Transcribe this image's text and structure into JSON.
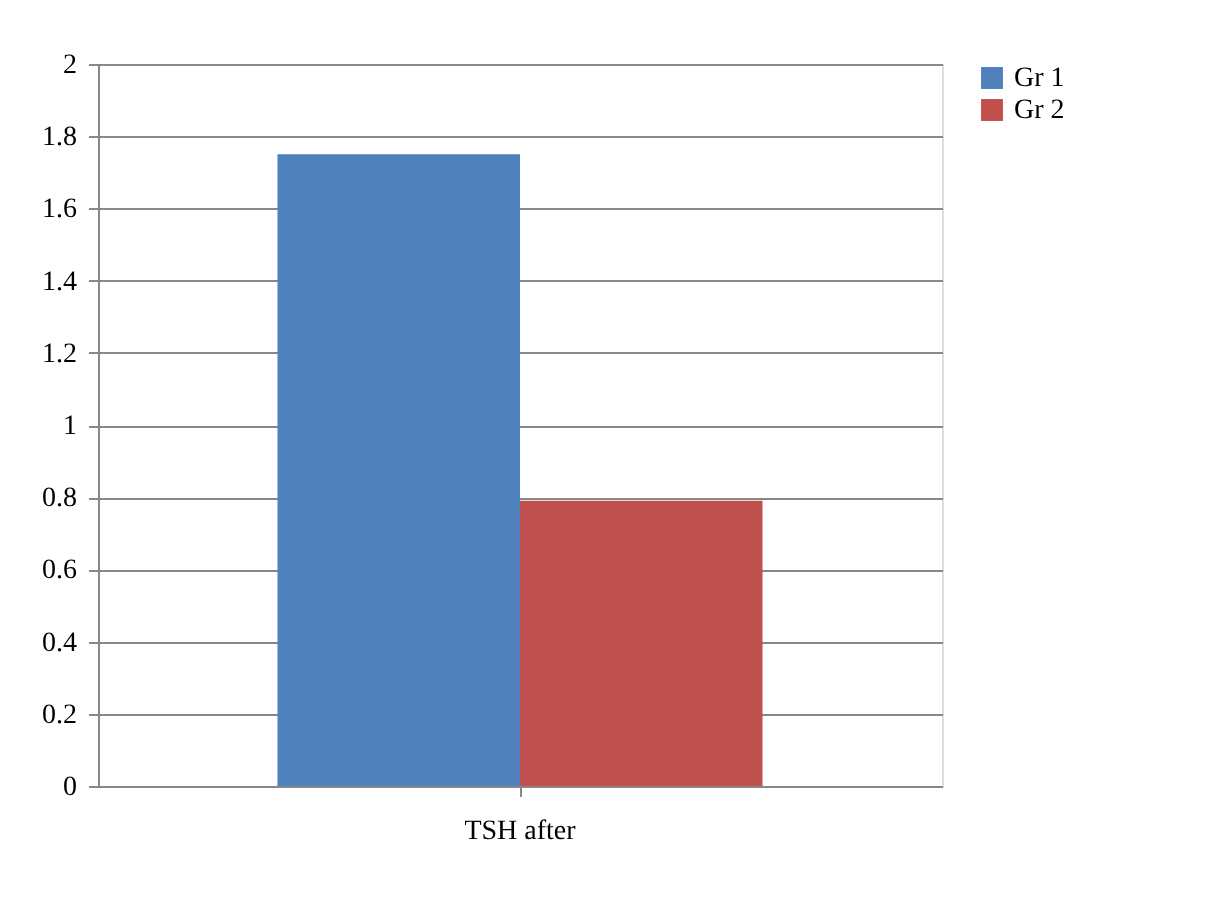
{
  "chart_data": {
    "type": "bar",
    "categories": [
      "TSH after"
    ],
    "series": [
      {
        "name": "Gr 1",
        "color": "#4f81bd",
        "values": [
          1.75
        ]
      },
      {
        "name": "Gr 2",
        "color": "#c0504d",
        "values": [
          0.79
        ]
      }
    ],
    "ylim": [
      0,
      2
    ],
    "yticks": [
      0,
      0.2,
      0.4,
      0.6,
      0.8,
      1,
      1.2,
      1.4,
      1.6,
      1.8,
      2
    ],
    "grid": "y",
    "legend": "right"
  }
}
